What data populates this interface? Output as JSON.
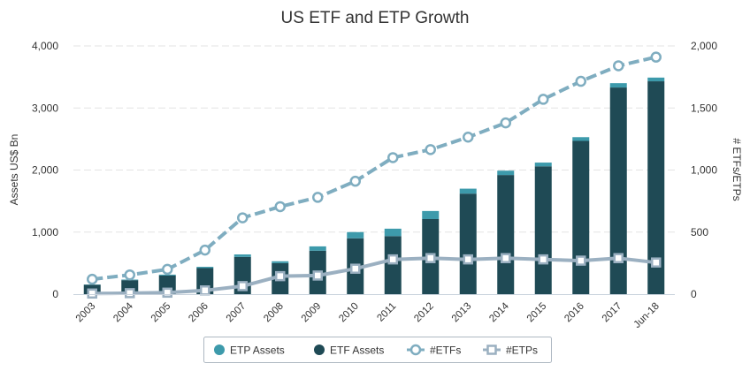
{
  "chart_data": {
    "type": "bar",
    "title": "US ETF and ETP Growth",
    "ylabel_left": "Assets US$ Bn",
    "ylabel_right": "# ETFs/ETPs",
    "categories": [
      "2003",
      "2004",
      "2005",
      "2006",
      "2007",
      "2008",
      "2009",
      "2010",
      "2011",
      "2012",
      "2013",
      "2014",
      "2015",
      "2016",
      "2017",
      "Jun-18"
    ],
    "y_left": {
      "min": 0,
      "max": 4000,
      "ticks": [
        0,
        1000,
        2000,
        3000,
        4000
      ],
      "tick_labels": [
        "0",
        "1,000",
        "2,000",
        "3,000",
        "4,000"
      ]
    },
    "y_right": {
      "min": 0,
      "max": 2000,
      "ticks": [
        0,
        500,
        1000,
        1500,
        2000
      ],
      "tick_labels": [
        "0",
        "500",
        "1,000",
        "1,500",
        "2,000"
      ]
    },
    "grid": true,
    "legend_position": "bottom",
    "series": [
      {
        "name": "ETP Assets",
        "type": "bar",
        "axis": "left",
        "color": "#3d9aab",
        "values": [
          5,
          10,
          15,
          20,
          40,
          30,
          70,
          100,
          120,
          130,
          80,
          70,
          60,
          60,
          70,
          60
        ]
      },
      {
        "name": "ETF Assets",
        "type": "bar",
        "axis": "left",
        "color": "#1f4a55",
        "values": [
          150,
          225,
          300,
          420,
          600,
          500,
          700,
          900,
          935,
          1210,
          1620,
          1920,
          2060,
          2470,
          3330,
          3430
        ]
      },
      {
        "name": "#ETFs",
        "type": "line",
        "axis": "right",
        "color": "#7fadc0",
        "dashed": true,
        "marker": "circle",
        "values": [
          120,
          155,
          200,
          355,
          615,
          705,
          780,
          910,
          1100,
          1165,
          1265,
          1380,
          1570,
          1715,
          1840,
          1910
        ]
      },
      {
        "name": "#ETPs",
        "type": "line",
        "axis": "right",
        "color": "#9bb0c1",
        "dashed": false,
        "marker": "square",
        "values": [
          5,
          8,
          12,
          30,
          65,
          145,
          150,
          205,
          280,
          290,
          280,
          290,
          280,
          270,
          290,
          255
        ]
      }
    ]
  }
}
